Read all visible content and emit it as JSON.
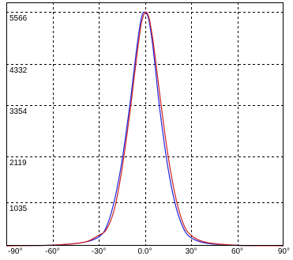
{
  "chart_data": {
    "type": "line",
    "title": "",
    "xlabel": "",
    "ylabel": "",
    "x_ticks": [
      -90,
      -60,
      -30,
      0,
      30,
      60,
      90
    ],
    "x_tick_labels": [
      "-90°",
      "-60°",
      "-30°",
      "0.0°",
      "30°",
      "60°",
      "90°"
    ],
    "y_ticks": [
      1035,
      2119,
      3354,
      4332,
      5566
    ],
    "y_tick_labels": [
      "1035",
      "2119",
      "3354",
      "4332",
      "5566"
    ],
    "xlim": [
      -90,
      90
    ],
    "ylim": [
      0,
      5800
    ],
    "grid": true,
    "legend": "none",
    "series": [
      {
        "color": "#2222dd",
        "x": [
          -90,
          -60,
          -40,
          -30,
          -25,
          -20,
          -15,
          -10,
          -7,
          -5,
          -3,
          -2,
          -1,
          0,
          1,
          2,
          3,
          5,
          7,
          10,
          15,
          20,
          25,
          30,
          40,
          60,
          90
        ],
        "y": [
          0,
          15,
          80,
          210,
          450,
          1050,
          2000,
          3300,
          4200,
          4800,
          5300,
          5470,
          5560,
          5566,
          5540,
          5460,
          5300,
          4800,
          4150,
          3150,
          1850,
          950,
          420,
          190,
          60,
          10,
          0
        ]
      },
      {
        "color": "#cc2222",
        "x": [
          -90,
          -60,
          -40,
          -30,
          -25,
          -20,
          -15,
          -10,
          -7,
          -5,
          -3,
          -2,
          -1,
          0,
          1,
          2,
          3,
          5,
          7,
          10,
          15,
          20,
          25,
          30,
          40,
          60,
          90
        ],
        "y": [
          0,
          15,
          80,
          250,
          390,
          850,
          1800,
          3100,
          4000,
          4600,
          5150,
          5350,
          5480,
          5560,
          5566,
          5500,
          5380,
          4950,
          4400,
          3500,
          2150,
          1150,
          520,
          250,
          80,
          12,
          0
        ]
      }
    ]
  }
}
